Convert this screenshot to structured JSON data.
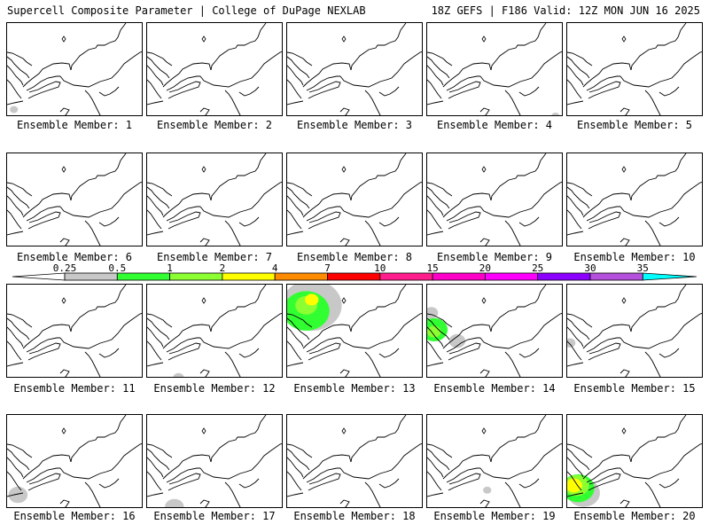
{
  "header": {
    "left": "Supercell Composite Parameter | College of DuPage NEXLAB",
    "right": "18Z GEFS | F186 Valid: 12Z MON JUN 16 2025"
  },
  "members": [
    {
      "label": "Ensemble Member: 1",
      "blobs": [
        [
          "gray",
          0.05,
          0.92,
          0.03
        ]
      ]
    },
    {
      "label": "Ensemble Member: 2",
      "blobs": []
    },
    {
      "label": "Ensemble Member: 3",
      "blobs": []
    },
    {
      "label": "Ensemble Member: 4",
      "blobs": [
        [
          "gray",
          0.94,
          0.99,
          0.03
        ]
      ]
    },
    {
      "label": "Ensemble Member: 5",
      "blobs": []
    },
    {
      "label": "Ensemble Member: 6",
      "blobs": []
    },
    {
      "label": "Ensemble Member: 7",
      "blobs": []
    },
    {
      "label": "Ensemble Member: 8",
      "blobs": []
    },
    {
      "label": "Ensemble Member: 9",
      "blobs": []
    },
    {
      "label": "Ensemble Member: 10",
      "blobs": []
    },
    {
      "label": "Ensemble Member: 11",
      "blobs": []
    },
    {
      "label": "Ensemble Member: 12",
      "blobs": [
        [
          "gray",
          0.23,
          0.99,
          0.04
        ]
      ]
    },
    {
      "label": "Ensemble Member: 13",
      "blobs": [
        [
          "gray",
          0.18,
          0.22,
          0.22
        ],
        [
          "gray",
          0.28,
          0.28,
          0.09
        ],
        [
          "green",
          0.14,
          0.28,
          0.17
        ],
        [
          "chartreuse",
          0.14,
          0.22,
          0.08
        ],
        [
          "yellow",
          0.18,
          0.16,
          0.05
        ]
      ]
    },
    {
      "label": "Ensemble Member: 14",
      "blobs": [
        [
          "gray",
          0.22,
          0.6,
          0.06
        ],
        [
          "gray",
          0.03,
          0.3,
          0.05
        ],
        [
          "green",
          0.05,
          0.48,
          0.1
        ],
        [
          "chartreuse",
          0.05,
          0.5,
          0.05
        ]
      ]
    },
    {
      "label": "Ensemble Member: 15",
      "blobs": [
        [
          "gray",
          0.02,
          0.62,
          0.04
        ]
      ]
    },
    {
      "label": "Ensemble Member: 16",
      "blobs": [
        [
          "gray",
          0.08,
          0.85,
          0.07
        ]
      ]
    },
    {
      "label": "Ensemble Member: 17",
      "blobs": [
        [
          "gray",
          0.2,
          0.98,
          0.07
        ]
      ]
    },
    {
      "label": "Ensemble Member: 18",
      "blobs": []
    },
    {
      "label": "Ensemble Member: 19",
      "blobs": [
        [
          "gray",
          0.44,
          0.8,
          0.03
        ]
      ]
    },
    {
      "label": "Ensemble Member: 20",
      "blobs": [
        [
          "gray",
          0.12,
          0.83,
          0.12
        ],
        [
          "green",
          0.08,
          0.78,
          0.12
        ],
        [
          "chartreuse",
          0.07,
          0.75,
          0.09
        ],
        [
          "yellow",
          0.05,
          0.75,
          0.06
        ]
      ]
    }
  ],
  "colorbar": {
    "levels": [
      "0.25",
      "0.5",
      "1",
      "2",
      "4",
      "7",
      "10",
      "15",
      "20",
      "25",
      "30",
      "35"
    ],
    "colors": [
      "#ffffff",
      "#c8c8c8",
      "#32ff32",
      "#8cff32",
      "#ffff00",
      "#ff8c00",
      "#ff0000",
      "#ff1e8c",
      "#ff00c8",
      "#ff00ff",
      "#8c00ff",
      "#b450dc",
      "#00ffff"
    ]
  },
  "palette": {
    "gray": "#c8c8c8",
    "green": "#32ff32",
    "chartreuse": "#8cff32",
    "yellow": "#ffff00"
  }
}
